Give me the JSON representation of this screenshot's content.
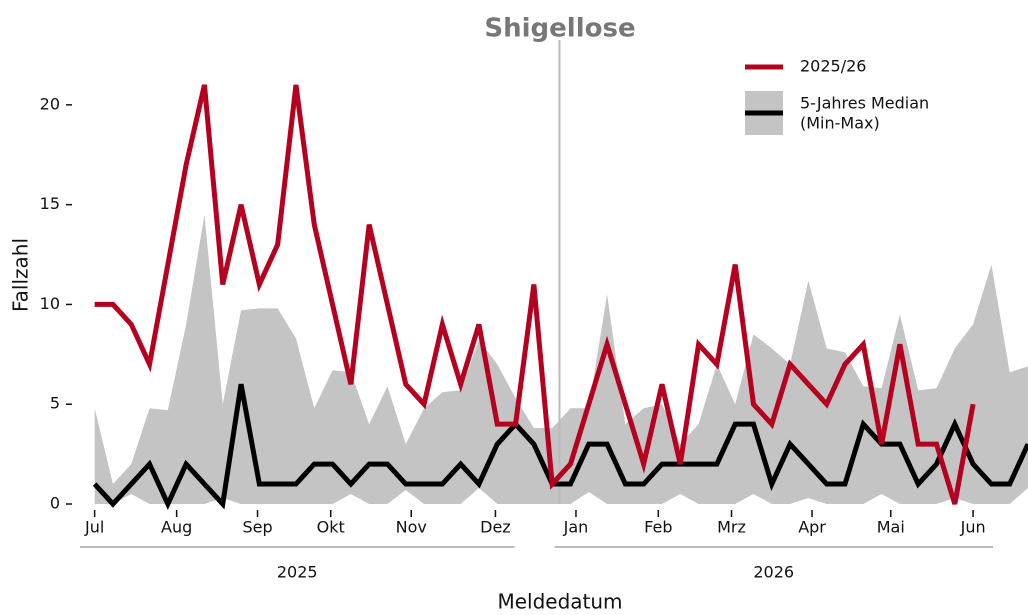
{
  "chart_data": {
    "type": "line",
    "title": "Shigellose",
    "ylabel": "Fallzahl",
    "xlabel": "Meldedatum",
    "x": [
      0,
      1,
      2,
      3,
      4,
      5,
      6,
      7,
      8,
      9,
      10,
      11,
      12,
      13,
      14,
      15,
      16,
      17,
      18,
      19,
      20,
      21,
      22,
      23,
      24,
      25,
      26,
      27,
      28,
      29,
      30,
      31,
      32,
      33,
      34,
      35,
      36,
      37,
      38,
      39,
      40,
      41,
      42,
      43,
      44,
      45,
      46,
      47,
      48,
      49,
      50,
      51
    ],
    "band": {
      "label": "(Min-Max)",
      "color": "#c4c4c4",
      "min": [
        0,
        0,
        0.5,
        0,
        0,
        0,
        0,
        0.3,
        0,
        0,
        0,
        0,
        0,
        0,
        0.5,
        0,
        0,
        0.7,
        0,
        0,
        0,
        0.8,
        0,
        0,
        0,
        0,
        0,
        0.6,
        0,
        0,
        0,
        0,
        0.5,
        0,
        0,
        0,
        0.5,
        0,
        0,
        0.3,
        0,
        0,
        0,
        0.5,
        0,
        0,
        0,
        0.3,
        0,
        0,
        0,
        0.8
      ],
      "max": [
        4.8,
        1,
        2,
        4.8,
        4.7,
        9,
        14.5,
        5,
        9.7,
        9.8,
        9.8,
        8.3,
        4.8,
        6.7,
        6.6,
        4,
        5.9,
        3,
        4.8,
        5.6,
        5.7,
        8.2,
        7,
        5.3,
        3.8,
        3.8,
        4.8,
        4.8,
        10.5,
        4,
        4.8,
        5,
        3,
        4,
        7,
        5,
        8.5,
        7.8,
        7,
        11.2,
        7.8,
        7.6,
        5.9,
        5.8,
        9.5,
        5.7,
        5.8,
        7.8,
        9,
        12,
        6.6,
        6.9
      ]
    },
    "series": [
      {
        "name": "5-Jahres Median",
        "color": "#000000",
        "values": [
          1,
          0,
          1,
          2,
          0,
          2,
          1,
          0,
          6,
          1,
          1,
          1,
          2,
          2,
          1,
          2,
          2,
          1,
          1,
          1,
          2,
          1,
          3,
          4,
          3,
          1,
          1,
          3,
          3,
          1,
          1,
          2,
          2,
          2,
          2,
          4,
          4,
          1,
          3,
          2,
          1,
          1,
          4,
          3,
          3,
          1,
          2,
          4,
          2,
          1,
          1,
          3
        ]
      },
      {
        "name": "2025/26",
        "color": "#b5001f",
        "values": [
          10,
          10,
          9,
          7,
          12,
          17,
          21,
          11,
          15,
          11,
          13,
          21,
          14,
          10,
          6,
          14,
          10,
          6,
          5,
          9,
          6,
          9,
          4,
          4,
          11,
          1,
          2,
          5,
          8,
          5,
          2,
          6,
          2,
          8,
          7,
          12,
          5,
          4,
          7,
          6,
          5,
          7,
          8,
          3,
          8,
          3,
          3,
          0,
          5,
          null,
          null,
          null
        ]
      }
    ],
    "xlim": [
      -0.8,
      51
    ],
    "ylim": [
      0,
      23
    ],
    "yticks": [
      0,
      5,
      10,
      15,
      20
    ],
    "xticks": [
      {
        "value": 0,
        "label": "Jul"
      },
      {
        "value": 4.48,
        "label": "Aug"
      },
      {
        "value": 8.9,
        "label": "Sep"
      },
      {
        "value": 12.9,
        "label": "Okt"
      },
      {
        "value": 17.3,
        "label": "Nov"
      },
      {
        "value": 21.9,
        "label": "Dez"
      },
      {
        "value": 26.3,
        "label": "Jan"
      },
      {
        "value": 30.8,
        "label": "Feb"
      },
      {
        "value": 34.8,
        "label": "Mrz"
      },
      {
        "value": 39.2,
        "label": "Apr"
      },
      {
        "value": 43.5,
        "label": "Mai"
      },
      {
        "value": 48,
        "label": "Jun"
      }
    ],
    "vline": 25.4,
    "x_groups": [
      "2025",
      "2026"
    ]
  }
}
